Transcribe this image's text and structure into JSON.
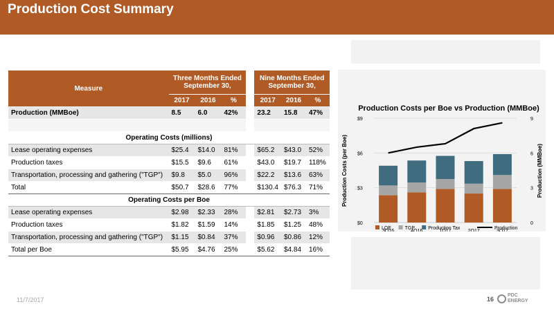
{
  "title": "Production Cost Summary",
  "table": {
    "measure_label": "Measure",
    "group1": "Three Months Ended September 30,",
    "group2": "Nine Months Ended September 30,",
    "subheaders": [
      "2017",
      "2016",
      "%",
      "2017",
      "2016",
      "%"
    ],
    "production": {
      "label": "Production (MMBoe)",
      "v": [
        "8.5",
        "6.0",
        "42%",
        "23.2",
        "15.8",
        "47%"
      ]
    },
    "section1": "Operating Costs (millions)",
    "rows1": [
      {
        "label": "Lease operating expenses",
        "v": [
          "$25.4",
          "$14.0",
          "81%",
          "$65.2",
          "$43.0",
          "52%"
        ]
      },
      {
        "label": "Production taxes",
        "v": [
          "$15.5",
          "$9.6",
          "61%",
          "$43.0",
          "$19.7",
          "118%"
        ]
      },
      {
        "label": "Transportation, processing and gathering (\"TGP\")",
        "v": [
          "$9.8",
          "$5.0",
          "96%",
          "$22.2",
          "$13.6",
          "63%"
        ]
      },
      {
        "label": "Total",
        "v": [
          "$50.7",
          "$28.6",
          "77%",
          "$130.4",
          "$76.3",
          "71%"
        ]
      }
    ],
    "section2": "Operating Costs per Boe",
    "rows2": [
      {
        "label": "Lease operating expenses",
        "v": [
          "$2.98",
          "$2.33",
          "28%",
          "$2.81",
          "$2.73",
          "3%"
        ]
      },
      {
        "label": "Production taxes",
        "v": [
          "$1.82",
          "$1.59",
          "14%",
          "$1.85",
          "$1.25",
          "48%"
        ]
      },
      {
        "label": "Transportation, processing and gathering (\"TGP\")",
        "v": [
          "$1.15",
          "$0.84",
          "37%",
          "$0.96",
          "$0.86",
          "12%"
        ]
      },
      {
        "label": "Total per Boe",
        "v": [
          "$5.95",
          "$4.76",
          "25%",
          "$5.62",
          "$4.84",
          "16%"
        ]
      }
    ]
  },
  "chart_data": {
    "type": "bar",
    "title": "Production Costs per Boe vs Production (MMBoe)",
    "categories": [
      "3Q16",
      "4Q16",
      "1Q17",
      "2Q17",
      "3Q17"
    ],
    "ylabel": "Production Costs (per Boe)",
    "y2label": "Production (MMBoe)",
    "ylim": [
      0,
      9
    ],
    "y2lim": [
      0,
      9
    ],
    "yticks": [
      "$0",
      "$3",
      "$6",
      "$9"
    ],
    "y2ticks": [
      "0",
      "3",
      "6",
      "9"
    ],
    "stacked": true,
    "series": [
      {
        "name": "LOE",
        "type": "bar",
        "color": "#b05b26",
        "values": [
          2.35,
          2.6,
          2.9,
          2.5,
          2.9
        ]
      },
      {
        "name": "TGP",
        "type": "bar",
        "color": "#a6a6a6",
        "values": [
          0.85,
          0.85,
          0.85,
          0.85,
          1.2
        ]
      },
      {
        "name": "Production Tax",
        "type": "bar",
        "color": "#3f6c7e",
        "values": [
          1.7,
          1.9,
          2.0,
          1.95,
          1.8
        ]
      },
      {
        "name": "Production",
        "type": "line",
        "axis": "y2",
        "color": "#000000",
        "values": [
          6.0,
          6.5,
          6.8,
          8.1,
          8.6
        ]
      }
    ],
    "legend_position": "bottom"
  },
  "footer": {
    "date": "11/7/2017",
    "page": "16",
    "logo_line1": "PDC",
    "logo_line2": "ENERGY"
  }
}
